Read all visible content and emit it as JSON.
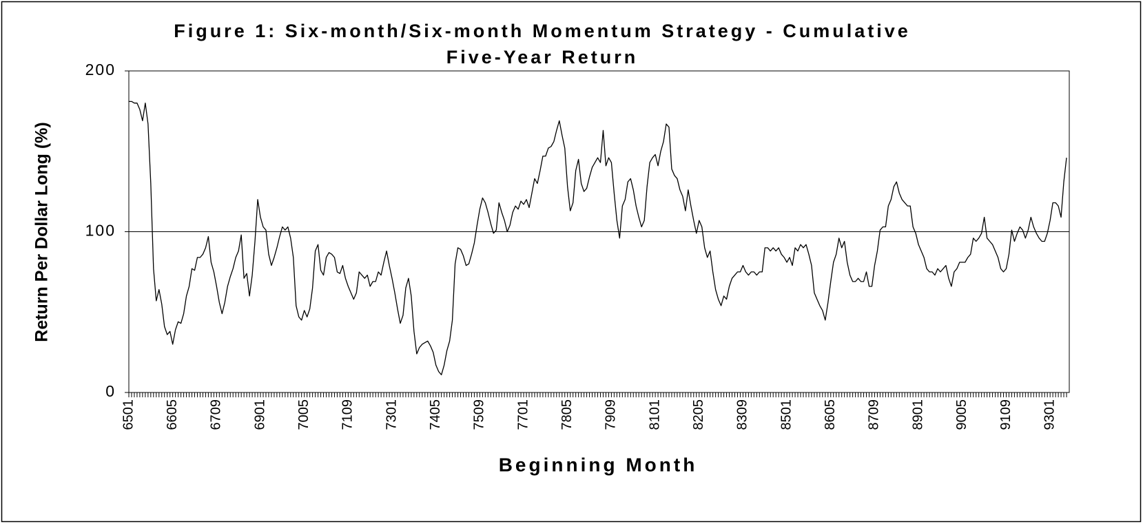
{
  "chart_data": {
    "type": "line",
    "title": [
      "Figure 1: Six-month/Six-month Momentum Strategy - Cumulative",
      "Five-Year Return"
    ],
    "x_label": "Beginning Month",
    "y_label": "Return Per Dollar Long (%)",
    "color": "#000000",
    "ylim": [
      0,
      200
    ],
    "yticks": [
      0,
      100,
      200
    ],
    "grid": true,
    "categories": [
      "6501",
      null,
      null,
      null,
      null,
      null,
      null,
      null,
      null,
      null,
      null,
      null,
      null,
      null,
      null,
      null,
      "6605",
      null,
      null,
      null,
      null,
      null,
      null,
      null,
      null,
      null,
      null,
      null,
      null,
      null,
      null,
      null,
      "6709",
      null,
      null,
      null,
      null,
      null,
      null,
      null,
      null,
      null,
      null,
      null,
      null,
      null,
      null,
      null,
      "6901",
      null,
      null,
      null,
      null,
      null,
      null,
      null,
      null,
      null,
      null,
      null,
      null,
      null,
      null,
      null,
      "7005",
      null,
      null,
      null,
      null,
      null,
      null,
      null,
      null,
      null,
      null,
      null,
      null,
      null,
      null,
      null,
      "7109",
      null,
      null,
      null,
      null,
      null,
      null,
      null,
      null,
      null,
      null,
      null,
      null,
      null,
      null,
      null,
      "7301",
      null,
      null,
      null,
      null,
      null,
      null,
      null,
      null,
      null,
      null,
      null,
      null,
      null,
      null,
      null,
      "7405",
      null,
      null,
      null,
      null,
      null,
      null,
      null,
      null,
      null,
      null,
      null,
      null,
      null,
      null,
      null,
      "7509",
      null,
      null,
      null,
      null,
      null,
      null,
      null,
      null,
      null,
      null,
      null,
      null,
      null,
      null,
      null,
      "7701",
      null,
      null,
      null,
      null,
      null,
      null,
      null,
      null,
      null,
      null,
      null,
      null,
      null,
      null,
      null,
      "7805",
      null,
      null,
      null,
      null,
      null,
      null,
      null,
      null,
      null,
      null,
      null,
      null,
      null,
      null,
      null,
      "7909",
      null,
      null,
      null,
      null,
      null,
      null,
      null,
      null,
      null,
      null,
      null,
      null,
      null,
      null,
      null,
      "8101",
      null,
      null,
      null,
      null,
      null,
      null,
      null,
      null,
      null,
      null,
      null,
      null,
      null,
      null,
      null,
      "8205",
      null,
      null,
      null,
      null,
      null,
      null,
      null,
      null,
      null,
      null,
      null,
      null,
      null,
      null,
      null,
      "8309",
      null,
      null,
      null,
      null,
      null,
      null,
      null,
      null,
      null,
      null,
      null,
      null,
      null,
      null,
      null,
      "8501",
      null,
      null,
      null,
      null,
      null,
      null,
      null,
      null,
      null,
      null,
      null,
      null,
      null,
      null,
      null,
      "8605",
      null,
      null,
      null,
      null,
      null,
      null,
      null,
      null,
      null,
      null,
      null,
      null,
      null,
      null,
      null,
      "8709",
      null,
      null,
      null,
      null,
      null,
      null,
      null,
      null,
      null,
      null,
      null,
      null,
      null,
      null,
      null,
      "8901",
      null,
      null,
      null,
      null,
      null,
      null,
      null,
      null,
      null,
      null,
      null,
      null,
      null,
      null,
      null,
      "9005",
      null,
      null,
      null,
      null,
      null,
      null,
      null,
      null,
      null,
      null,
      null,
      null,
      null,
      null,
      null,
      "9109",
      null,
      null,
      null,
      null,
      null,
      null,
      null,
      null,
      null,
      null,
      null,
      null,
      null,
      null,
      null,
      "9301",
      null,
      null,
      null,
      null,
      null,
      null
    ],
    "values": [
      181,
      181,
      180,
      180,
      176,
      169,
      180,
      167,
      130,
      77,
      57,
      64,
      55,
      41,
      36,
      38,
      30,
      39,
      44,
      43,
      49,
      60,
      66,
      77,
      76,
      84,
      84,
      86,
      90,
      97,
      81,
      75,
      66,
      56,
      49,
      56,
      66,
      72,
      77,
      84,
      88,
      98,
      71,
      74,
      60,
      73,
      94,
      120,
      109,
      103,
      101,
      86,
      79,
      84,
      90,
      97,
      103,
      101,
      103,
      96,
      84,
      54,
      47,
      45,
      51,
      47,
      52,
      65,
      88,
      92,
      76,
      73,
      84,
      87,
      86,
      84,
      75,
      74,
      79,
      71,
      66,
      62,
      58,
      62,
      75,
      73,
      71,
      73,
      66,
      69,
      69,
      75,
      73,
      81,
      88,
      79,
      71,
      62,
      52,
      43,
      48,
      65,
      71,
      60,
      38,
      24,
      28,
      30,
      31,
      32,
      29,
      25,
      17,
      13,
      11,
      17,
      26,
      32,
      45,
      80,
      90,
      89,
      85,
      79,
      80,
      86,
      93,
      104,
      114,
      121,
      118,
      112,
      105,
      99,
      101,
      118,
      112,
      107,
      100,
      104,
      112,
      116,
      114,
      119,
      117,
      120,
      115,
      124,
      133,
      130,
      138,
      147,
      147,
      152,
      153,
      156,
      163,
      169,
      160,
      152,
      128,
      113,
      118,
      138,
      145,
      130,
      125,
      127,
      134,
      140,
      143,
      146,
      143,
      163,
      141,
      146,
      143,
      124,
      107,
      96,
      116,
      120,
      131,
      133,
      126,
      116,
      109,
      103,
      107,
      128,
      143,
      146,
      148,
      141,
      150,
      156,
      167,
      165,
      139,
      135,
      133,
      126,
      122,
      113,
      126,
      116,
      107,
      99,
      107,
      103,
      90,
      84,
      88,
      75,
      64,
      58,
      54,
      60,
      58,
      66,
      71,
      73,
      75,
      75,
      79,
      75,
      73,
      75,
      75,
      73,
      75,
      75,
      90,
      90,
      88,
      90,
      88,
      90,
      86,
      84,
      81,
      84,
      79,
      90,
      88,
      92,
      90,
      92,
      86,
      79,
      62,
      58,
      54,
      51,
      45,
      56,
      69,
      81,
      86,
      96,
      90,
      94,
      81,
      73,
      69,
      69,
      71,
      69,
      69,
      75,
      66,
      66,
      79,
      88,
      101,
      103,
      103,
      116,
      120,
      128,
      131,
      124,
      120,
      118,
      116,
      116,
      103,
      99,
      92,
      88,
      84,
      77,
      75,
      75,
      73,
      77,
      75,
      77,
      79,
      71,
      66,
      75,
      77,
      81,
      81,
      81,
      84,
      86,
      96,
      94,
      96,
      99,
      109,
      96,
      94,
      92,
      88,
      84,
      77,
      75,
      77,
      86,
      101,
      94,
      99,
      103,
      101,
      96,
      101,
      109,
      103,
      99,
      96,
      94,
      94,
      99,
      107,
      118,
      118,
      116,
      109,
      131,
      146
    ]
  }
}
